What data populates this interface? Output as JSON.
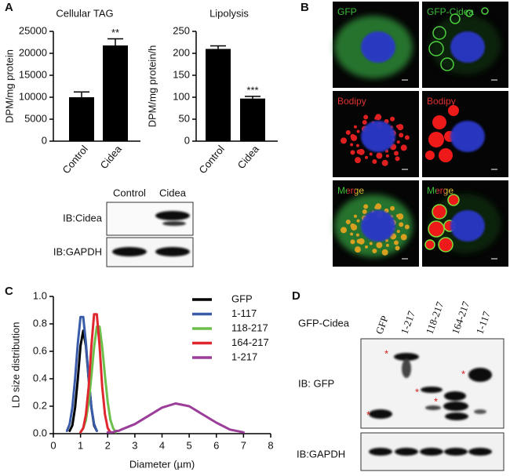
{
  "panel_labels": [
    "A",
    "B",
    "C",
    "D"
  ],
  "chart_data": [
    {
      "type": "bar",
      "title": "Cellular TAG",
      "ylabel": "DPM/mg protein",
      "categories": [
        "Control",
        "Cidea"
      ],
      "values": [
        10000,
        21800
      ],
      "errors": [
        1200,
        1500
      ],
      "annotations": [
        null,
        "**"
      ],
      "color": "#000000",
      "ylim": [
        0,
        25000
      ],
      "yticks": [
        0,
        5000,
        10000,
        15000,
        20000,
        25000
      ]
    },
    {
      "type": "bar",
      "title": "Lipolysis",
      "ylabel": "DPM/mg protein/h",
      "categories": [
        "Control",
        "Cidea"
      ],
      "values": [
        210,
        97
      ],
      "errors": [
        7,
        5
      ],
      "annotations": [
        null,
        "***"
      ],
      "color": "#000000",
      "ylim": [
        0,
        250
      ],
      "yticks": [
        0,
        50,
        100,
        150,
        200,
        250
      ]
    },
    {
      "type": "line",
      "xlabel": "Diameter (µm)",
      "ylabel": "LD size distribution",
      "x": [
        0.5,
        0.6,
        0.7,
        0.8,
        0.9,
        1.0,
        1.1,
        1.2,
        1.3,
        1.4,
        1.5,
        1.6,
        1.7,
        1.8,
        1.9,
        2.0,
        2.1,
        2.2,
        2.3,
        2.4,
        2.5,
        3,
        3.5,
        4,
        4.5,
        5,
        5.5,
        6,
        6.5,
        7
      ],
      "series": [
        {
          "name": "GFP",
          "color": "#000000",
          "values": [
            null,
            0.02,
            0.06,
            0.19,
            0.4,
            0.64,
            0.75,
            0.64,
            0.4,
            0.19,
            0.06,
            0.02,
            null,
            null,
            null,
            null,
            null,
            null,
            null,
            null,
            null,
            null,
            null,
            null,
            null,
            null,
            null,
            null,
            null,
            null
          ]
        },
        {
          "name": "1-117",
          "color": "#3a5ba8",
          "values": [
            0.02,
            0.07,
            0.19,
            0.4,
            0.66,
            0.85,
            0.85,
            0.66,
            0.4,
            0.19,
            0.07,
            0.02,
            null,
            null,
            null,
            null,
            null,
            null,
            null,
            null,
            null,
            null,
            null,
            null,
            null,
            null,
            null,
            null,
            null,
            null
          ]
        },
        {
          "name": "118-217",
          "color": "#6dbf4b",
          "values": [
            null,
            null,
            null,
            null,
            null,
            0.01,
            0.04,
            0.1,
            0.23,
            0.42,
            0.63,
            0.78,
            0.78,
            0.63,
            0.42,
            0.23,
            0.1,
            0.04,
            0.01,
            null,
            null,
            null,
            null,
            null,
            null,
            null,
            null,
            null,
            null,
            null
          ]
        },
        {
          "name": "164-217",
          "color": "#e0262f",
          "values": [
            null,
            null,
            null,
            null,
            null,
            0.01,
            0.04,
            0.14,
            0.34,
            0.64,
            0.87,
            0.87,
            0.64,
            0.34,
            0.14,
            0.04,
            0.01,
            null,
            null,
            null,
            null,
            null,
            null,
            null,
            null,
            null,
            null,
            null,
            null,
            null
          ]
        },
        {
          "name": "1-217",
          "color": "#9b3e9a",
          "values": [
            null,
            null,
            null,
            null,
            null,
            null,
            null,
            null,
            null,
            null,
            null,
            null,
            null,
            null,
            null,
            0.01,
            0.01,
            0.01,
            0.02,
            0.02,
            0.03,
            0.07,
            0.13,
            0.19,
            0.22,
            0.2,
            0.14,
            0.08,
            0.03,
            0.01
          ]
        }
      ],
      "xlim": [
        0,
        8
      ],
      "xticks": [
        0,
        1,
        2,
        3,
        4,
        5,
        6,
        7,
        8
      ],
      "ylim": [
        0,
        1
      ],
      "yticks": [
        {
          "value": 0,
          "label": "0.0"
        },
        0.2,
        0.4,
        0.6,
        0.8,
        {
          "value": 1,
          "label": "1.0"
        }
      ],
      "legend": "upper right"
    }
  ],
  "blot_a": {
    "lanes": [
      "Control",
      "Cidea"
    ],
    "rows": [
      "IB:Cidea",
      "IB:GAPDH"
    ]
  },
  "microscopy": {
    "labels": [
      "GFP",
      "GFP-Cidea",
      "Bodipy",
      "Bodipy",
      "Merge",
      "Merge"
    ]
  },
  "blot_d": {
    "header": "GFP-Cidea",
    "lanes": [
      "GFP",
      "1-217",
      "118-217",
      "164-217",
      "1-117"
    ],
    "rows": [
      "IB: GFP",
      "IB:GAPDH"
    ],
    "asterisks": [
      "*",
      "*",
      "*",
      "*",
      "*"
    ]
  }
}
